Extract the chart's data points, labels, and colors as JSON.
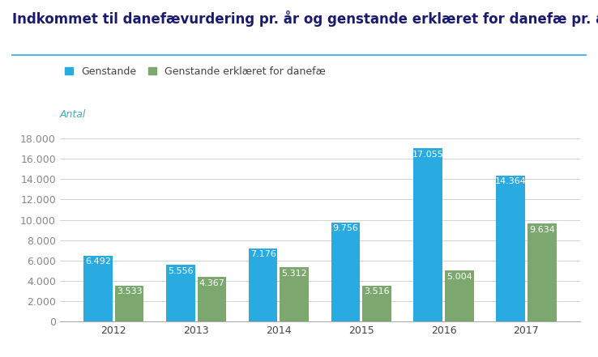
{
  "title": "Indkommet til danefævurdering pr. år og genstande erklæret for danefæ pr. år",
  "ylabel": "Antal",
  "years": [
    "2012",
    "2013",
    "2014",
    "2015",
    "2016",
    "2017"
  ],
  "genstande": [
    6492,
    5556,
    7176,
    9756,
    17055,
    14364
  ],
  "erklaret": [
    3533,
    4367,
    5312,
    3516,
    5004,
    9634
  ],
  "color_genstande": "#29ABE2",
  "color_erklaret": "#7CA870",
  "legend_genstande": "Genstande",
  "legend_erklaret": "Genstande erklæret for danefæ",
  "ylim": [
    0,
    19000
  ],
  "yticks": [
    0,
    2000,
    4000,
    6000,
    8000,
    10000,
    12000,
    14000,
    16000,
    18000
  ],
  "ytick_labels": [
    "0",
    "2.000",
    "4.000",
    "6.000",
    "8.000",
    "10.000",
    "12.000",
    "14.000",
    "16.000",
    "18.000"
  ],
  "background_color": "#FFFFFF",
  "grid_color": "#CCCCCC",
  "title_fontsize": 12,
  "label_fontsize": 9,
  "bar_label_fontsize": 8,
  "ylabel_color": "#4BAAB5",
  "title_color": "#1A1A6E",
  "separator_color": "#29ABE2",
  "bar_width": 0.35,
  "bar_gap": 0.38
}
